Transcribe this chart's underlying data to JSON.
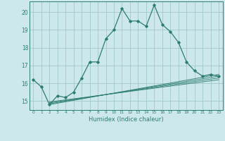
{
  "title": "",
  "xlabel": "Humidex (Indice chaleur)",
  "background_color": "#cde8ec",
  "grid_color": "#a0c8cc",
  "line_color": "#2e7d72",
  "xlim": [
    -0.5,
    23.5
  ],
  "ylim": [
    14.5,
    20.6
  ],
  "yticks": [
    15,
    16,
    17,
    18,
    19,
    20
  ],
  "xticks": [
    0,
    1,
    2,
    3,
    4,
    5,
    6,
    7,
    8,
    9,
    10,
    11,
    12,
    13,
    14,
    15,
    16,
    17,
    18,
    19,
    20,
    21,
    22,
    23
  ],
  "main_line_x": [
    0,
    1,
    2,
    3,
    4,
    5,
    6,
    7,
    8,
    9,
    10,
    11,
    12,
    13,
    14,
    15,
    16,
    17,
    18,
    19,
    20,
    21,
    22,
    23
  ],
  "main_line_y": [
    16.2,
    15.8,
    14.8,
    15.3,
    15.2,
    15.5,
    16.3,
    17.2,
    17.2,
    18.5,
    19.0,
    20.2,
    19.5,
    19.5,
    19.2,
    20.4,
    19.3,
    18.9,
    18.3,
    17.2,
    16.7,
    16.4,
    16.5,
    16.4
  ],
  "ref_lines": [
    [
      2,
      14.8,
      23,
      16.5
    ],
    [
      2,
      14.85,
      23,
      16.4
    ],
    [
      2,
      14.9,
      23,
      16.3
    ],
    [
      2,
      14.95,
      23,
      16.2
    ]
  ]
}
